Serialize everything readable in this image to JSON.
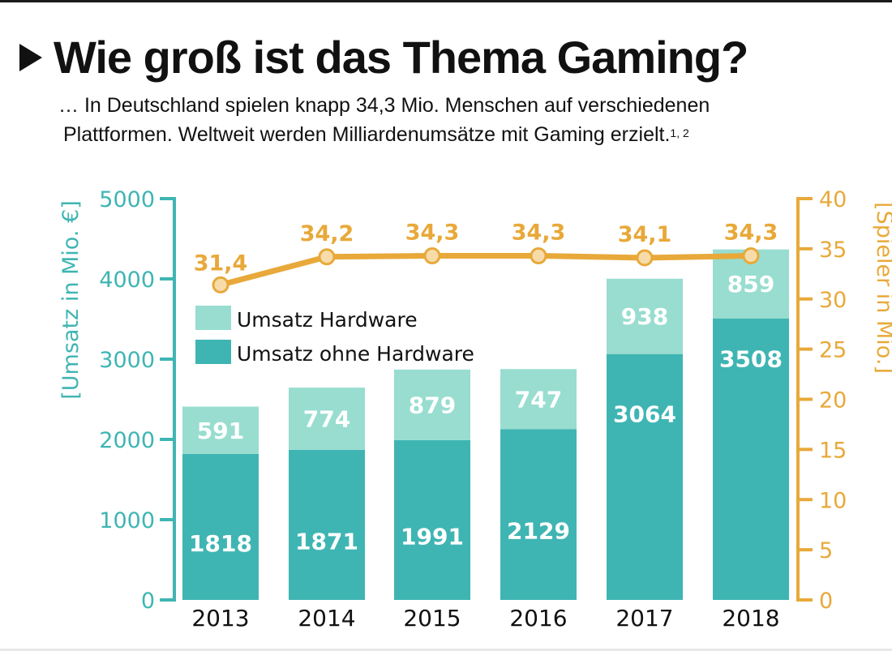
{
  "header": {
    "title": "Wie groß ist das Thema Gaming?",
    "subtitle_line1": "… In Deutschland spielen knapp 34,3 Mio. Menschen auf verschiedenen",
    "subtitle_line2": "Plattformen. Weltweit werden Milliardenumsätze mit Gaming erzielt.",
    "footnote_refs": "1, 2",
    "bullet_icon": "play-triangle-icon"
  },
  "colors": {
    "hardware": "#98ddd0",
    "without_hardware": "#3fb5b3",
    "players_line": "#e8a93a",
    "marker_fill": "#f7dcaa",
    "left_axis": "#3fb5b3",
    "right_axis": "#e8a93a"
  },
  "chart_data": {
    "type": "bar",
    "subtype": "stacked-bar-with-line",
    "title": "Wie groß ist das Thema Gaming?",
    "categories": [
      "2013",
      "2014",
      "2015",
      "2016",
      "2017",
      "2018"
    ],
    "series": [
      {
        "name": "Umsatz ohne Hardware",
        "axis": "left",
        "type": "bar",
        "values": [
          1818,
          1871,
          1991,
          2129,
          3064,
          3508
        ]
      },
      {
        "name": "Umsatz Hardware",
        "axis": "left",
        "type": "bar",
        "values": [
          591,
          774,
          879,
          747,
          938,
          859
        ]
      },
      {
        "name": "Spieler",
        "axis": "right",
        "type": "line",
        "values": [
          31.4,
          34.2,
          34.3,
          34.3,
          34.1,
          34.3
        ],
        "labels": [
          "31,4",
          "34,2",
          "34,3",
          "34,3",
          "34,1",
          "34,3"
        ]
      }
    ],
    "ylabel": "[Umsatz in Mio. €]",
    "ylim": [
      0,
      5000
    ],
    "yticks": [
      0,
      1000,
      2000,
      3000,
      4000,
      5000
    ],
    "y2label": "[Spieler in Mio.]",
    "y2lim": [
      0,
      40
    ],
    "y2ticks": [
      0,
      5,
      10,
      15,
      20,
      25,
      30,
      35,
      40
    ],
    "legend": {
      "placement": "upper-left-inside",
      "entries": [
        "Umsatz Hardware",
        "Umsatz ohne Hardware"
      ]
    },
    "grid": false
  }
}
